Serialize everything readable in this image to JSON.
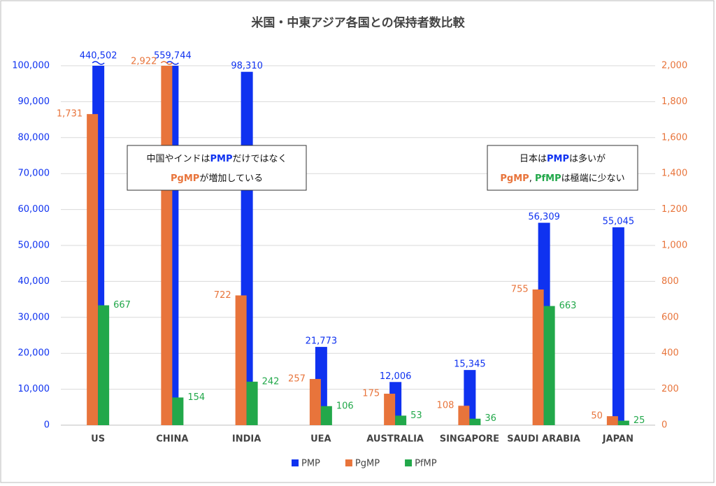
{
  "chart_data": {
    "type": "bar",
    "title": "米国・中東アジア各国との保持者数比較",
    "categories": [
      "US",
      "CHINA",
      "INDIA",
      "UEA",
      "AUSTRALIA",
      "SINGAPORE",
      "SAUDI ARABIA",
      "JAPAN"
    ],
    "series": [
      {
        "name": "PMP",
        "color": "#0f32f0",
        "axis": "y",
        "values": [
          440502,
          559744,
          98310,
          21773,
          12006,
          15345,
          56309,
          55045
        ],
        "value_labels": [
          "440,502",
          "559,744",
          "98,310",
          "21,773",
          "12,006",
          "15,345",
          "56,309",
          "55,045"
        ]
      },
      {
        "name": "PgMP",
        "color": "#e8743b",
        "axis": "y2",
        "values": [
          1731,
          2922,
          722,
          257,
          175,
          108,
          755,
          50
        ],
        "value_labels": [
          "1,731",
          "2,922",
          "722",
          "257",
          "175",
          "108",
          "755",
          "50"
        ]
      },
      {
        "name": "PfMP",
        "color": "#22a84a",
        "axis": "y2",
        "values": [
          667,
          154,
          242,
          106,
          53,
          36,
          663,
          25
        ]
      }
    ],
    "ylim": [
      0,
      100000
    ],
    "yticks": [
      0,
      {
        "value": 10000,
        "label": "10,000"
      },
      {
        "value": 20000,
        "label": "20,000"
      },
      {
        "value": 30000,
        "label": "30,000"
      },
      {
        "value": 40000,
        "label": "40,000"
      },
      {
        "value": 50000,
        "label": "50,000"
      },
      {
        "value": 60000,
        "label": "60,000"
      },
      {
        "value": 70000,
        "label": "70,000"
      },
      {
        "value": 80000,
        "label": "80,000"
      },
      {
        "value": 90000,
        "label": "90,000"
      },
      {
        "value": 100000,
        "label": "100,000"
      }
    ],
    "y2lim": [
      0,
      2000
    ],
    "y2ticks": [
      0,
      200,
      400,
      600,
      800,
      {
        "value": 1000,
        "label": "1,000"
      },
      {
        "value": 1200,
        "label": "1,200"
      },
      {
        "value": 1400,
        "label": "1,400"
      },
      {
        "value": 1600,
        "label": "1,600"
      },
      {
        "value": 1800,
        "label": "1,800"
      },
      {
        "value": 2000,
        "label": "2,000"
      }
    ],
    "grid": true,
    "legend": "bottom",
    "annotations": [
      {
        "lines": [
          [
            {
              "text": "中国やインドは"
            },
            {
              "text": "PMP",
              "color": "#0f32f0"
            },
            {
              "text": "だけではなく"
            }
          ],
          [
            {
              "text": "PgMP",
              "color": "#e8743b"
            },
            {
              "text": "が増加している"
            }
          ]
        ]
      },
      {
        "lines": [
          [
            {
              "text": "日本は"
            },
            {
              "text": "PMP",
              "color": "#0f32f0"
            },
            {
              "text": "は多いが"
            }
          ],
          [
            {
              "text": "PgMP",
              "color": "#e8743b"
            },
            {
              "text": ", "
            },
            {
              "text": "PfMP",
              "color": "#22a84a"
            },
            {
              "text": "は極端に少ない"
            }
          ]
        ]
      }
    ]
  }
}
